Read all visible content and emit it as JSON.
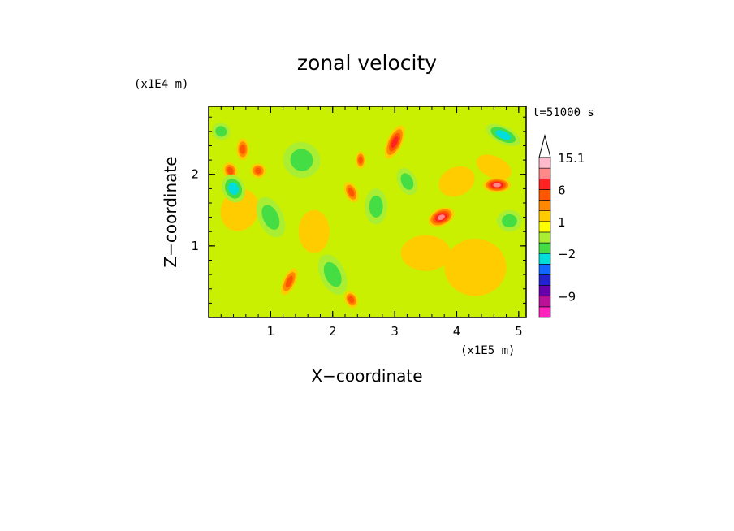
{
  "chart_data": {
    "type": "heatmap",
    "title": "zonal velocity",
    "xlabel": "X−coordinate",
    "ylabel": "Z−coordinate",
    "x_unit_label": "(x1E5 m)",
    "y_unit_label": "(x1E4 m)",
    "time_label": "t=51000 s",
    "xlim": [
      0,
      5.12
    ],
    "ylim": [
      0,
      2.95
    ],
    "x_ticks": [
      {
        "value": 1,
        "label": "1"
      },
      {
        "value": 2,
        "label": "2"
      },
      {
        "value": 3,
        "label": "3"
      },
      {
        "value": 4,
        "label": "4"
      },
      {
        "value": 5,
        "label": "5"
      }
    ],
    "y_ticks": [
      {
        "value": 1,
        "label": "1"
      },
      {
        "value": 2,
        "label": "2"
      }
    ],
    "colorbar": {
      "colors": [
        "#ff22bb",
        "#bb1199",
        "#6600aa",
        "#2222cc",
        "#1166ff",
        "#00dddd",
        "#44dd44",
        "#aaee33",
        "#ffff00",
        "#ffcc00",
        "#ff8800",
        "#ff5500",
        "#ff2222",
        "#ff8888",
        "#ffbbcc",
        "#ffffff"
      ],
      "labels": [
        {
          "text": "15.1",
          "at_band": 15
        },
        {
          "text": "6",
          "at_band": 12
        },
        {
          "text": "1",
          "at_band": 9
        },
        {
          "text": "−2",
          "at_band": 6
        },
        {
          "text": "−9",
          "at_band": 2
        }
      ]
    },
    "background_color": "#c8f000",
    "features": [
      {
        "x": 0.35,
        "z": 2.05,
        "rx": 0.11,
        "rz": 0.12,
        "v": 5
      },
      {
        "x": 0.55,
        "z": 2.35,
        "rx": 0.1,
        "rz": 0.15,
        "v": 5
      },
      {
        "x": 0.8,
        "z": 2.05,
        "rx": 0.12,
        "rz": 0.1,
        "v": 5
      },
      {
        "x": 2.3,
        "z": 1.75,
        "rx": 0.1,
        "rz": 0.15,
        "v": 5
      },
      {
        "x": 2.45,
        "z": 2.2,
        "rx": 0.08,
        "rz": 0.12,
        "v": 5
      },
      {
        "x": 3.0,
        "z": 2.45,
        "rx": 0.12,
        "rz": 0.25,
        "v": 4
      },
      {
        "x": 3.75,
        "z": 1.4,
        "rx": 0.22,
        "rz": 0.12,
        "v": 3
      },
      {
        "x": 4.65,
        "z": 1.85,
        "rx": 0.22,
        "rz": 0.1,
        "v": 3
      },
      {
        "x": 1.3,
        "z": 0.5,
        "rx": 0.1,
        "rz": 0.2,
        "v": 5
      },
      {
        "x": 2.3,
        "z": 0.25,
        "rx": 0.1,
        "rz": 0.12,
        "v": 5
      },
      {
        "x": 3.5,
        "z": 0.9,
        "rx": 0.4,
        "rz": 0.25,
        "v": 7
      },
      {
        "x": 0.5,
        "z": 1.5,
        "rx": 0.3,
        "rz": 0.3,
        "v": 7
      },
      {
        "x": 4.0,
        "z": 1.9,
        "rx": 0.3,
        "rz": 0.2,
        "v": 7
      },
      {
        "x": 1.7,
        "z": 1.2,
        "rx": 0.25,
        "rz": 0.3,
        "v": 7
      },
      {
        "x": 4.75,
        "z": 2.55,
        "rx": 0.3,
        "rz": 0.12,
        "v": 11
      },
      {
        "x": 0.4,
        "z": 1.8,
        "rx": 0.18,
        "rz": 0.2,
        "v": 11
      },
      {
        "x": 2.7,
        "z": 1.55,
        "rx": 0.18,
        "rz": 0.25,
        "v": 10
      },
      {
        "x": 1.5,
        "z": 2.2,
        "rx": 0.3,
        "rz": 0.25,
        "v": 10
      },
      {
        "x": 3.2,
        "z": 1.9,
        "rx": 0.15,
        "rz": 0.2,
        "v": 10
      },
      {
        "x": 4.85,
        "z": 1.35,
        "rx": 0.2,
        "rz": 0.15,
        "v": 10
      },
      {
        "x": 0.2,
        "z": 2.6,
        "rx": 0.15,
        "rz": 0.12,
        "v": 10
      },
      {
        "x": 2.0,
        "z": 0.6,
        "rx": 0.2,
        "rz": 0.3,
        "v": 10
      },
      {
        "x": 4.3,
        "z": 0.7,
        "rx": 0.5,
        "rz": 0.4,
        "v": 8
      },
      {
        "x": 4.6,
        "z": 2.1,
        "rx": 0.3,
        "rz": 0.15,
        "v": 7
      },
      {
        "x": 1.0,
        "z": 1.4,
        "rx": 0.2,
        "rz": 0.3,
        "v": 10
      }
    ]
  }
}
